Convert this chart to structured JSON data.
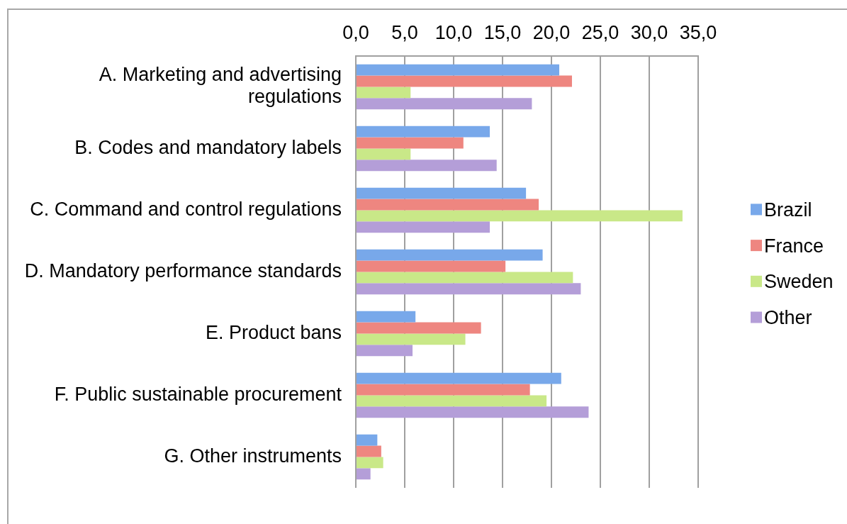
{
  "chart_data": {
    "type": "bar",
    "orientation": "horizontal",
    "categories": [
      "A. Marketing and advertising regulations",
      "B. Codes and mandatory labels",
      "C. Command and control regulations",
      "D. Mandatory performance standards",
      "E. Product bans",
      "F. Public sustainable procurement",
      "G. Other instruments"
    ],
    "series": [
      {
        "name": "Brazil",
        "color": "#78a8ea",
        "values": [
          20.8,
          13.7,
          17.4,
          19.1,
          6.1,
          21.0,
          2.2
        ]
      },
      {
        "name": "France",
        "color": "#ee8680",
        "values": [
          22.1,
          11.0,
          18.7,
          15.3,
          12.8,
          17.8,
          2.6
        ]
      },
      {
        "name": "Sweden",
        "color": "#c9e888",
        "values": [
          5.6,
          5.6,
          33.4,
          22.2,
          11.2,
          19.5,
          2.8
        ]
      },
      {
        "name": "Other",
        "color": "#b49ed8",
        "values": [
          18.0,
          14.4,
          13.7,
          23.0,
          5.8,
          23.8,
          1.5
        ]
      }
    ],
    "xlim": [
      0,
      35
    ],
    "xticks": [
      {
        "value": 0,
        "label": "0,0"
      },
      {
        "value": 5,
        "label": "5,0"
      },
      {
        "value": 10,
        "label": "10,0"
      },
      {
        "value": 15,
        "label": "15,0"
      },
      {
        "value": 20,
        "label": "20,0"
      },
      {
        "value": 25,
        "label": "25,0"
      },
      {
        "value": 30,
        "label": "30,0"
      },
      {
        "value": 35,
        "label": "35,0"
      }
    ],
    "grid": "x",
    "legend": "right"
  }
}
